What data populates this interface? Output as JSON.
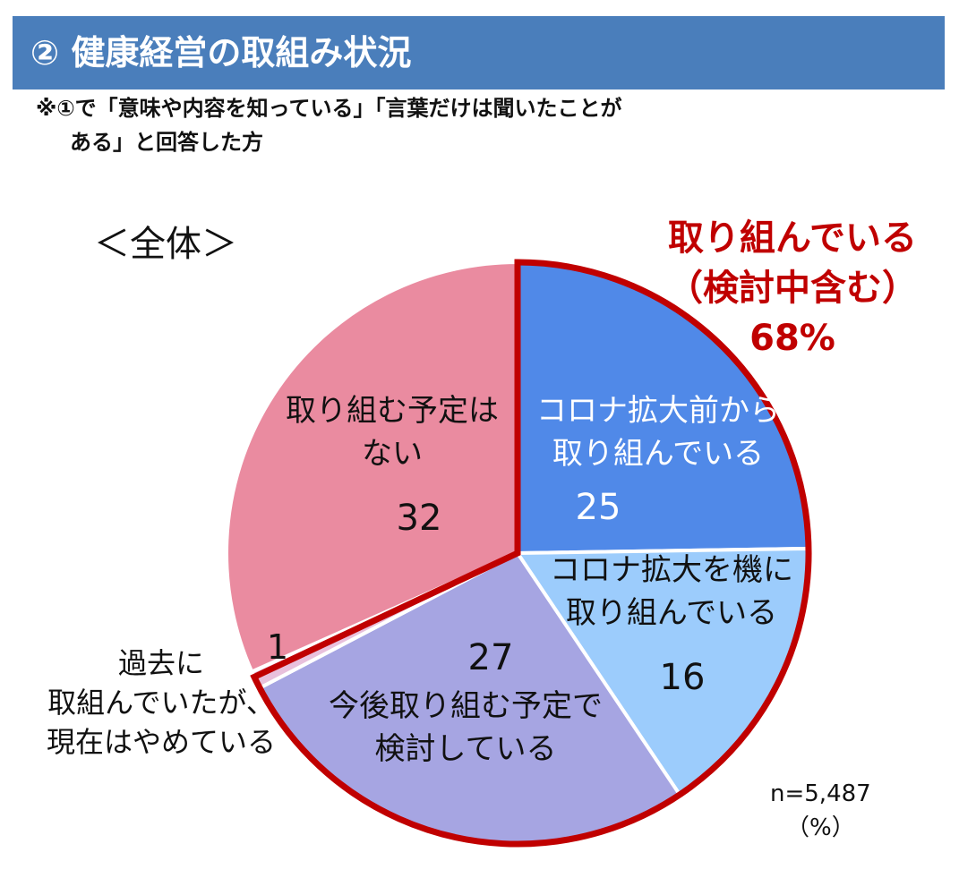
{
  "header": {
    "title": "② 健康経営の取組み状況"
  },
  "note": {
    "line1": "※①で「意味や内容を知っている」「言葉だけは聞いたことが",
    "line2": "ある」と回答した方"
  },
  "subtitle": "＜全体＞",
  "callout": {
    "line1": "取り組んでいる",
    "line2": "（検討中含む）",
    "line3": "68%"
  },
  "footnote": {
    "n": "n=5,487",
    "unit": "（%）"
  },
  "colors": {
    "header": "#4a7ebb",
    "accent": "#c00000"
  },
  "chart_data": {
    "type": "pie",
    "slices": [
      {
        "label_lines": [
          "コロナ拡大前から",
          "取り組んでいる"
        ],
        "value": 25,
        "color": "#5089e8"
      },
      {
        "label_lines": [
          "コロナ拡大を機に",
          "取り組んでいる"
        ],
        "value": 16,
        "color": "#9cccfc"
      },
      {
        "label_lines": [
          "今後取り組む予定で",
          "検討している"
        ],
        "value": 27,
        "color": "#a6a5e2"
      },
      {
        "label_lines": [
          "過去に",
          "取組んでいたが、",
          "現在はやめている"
        ],
        "value": 1,
        "color": "#e8c0dc"
      },
      {
        "label_lines": [
          "取り組む予定は",
          "ない"
        ],
        "value": 32,
        "color": "#ea8ba0"
      }
    ],
    "highlight_group_value": 68
  }
}
